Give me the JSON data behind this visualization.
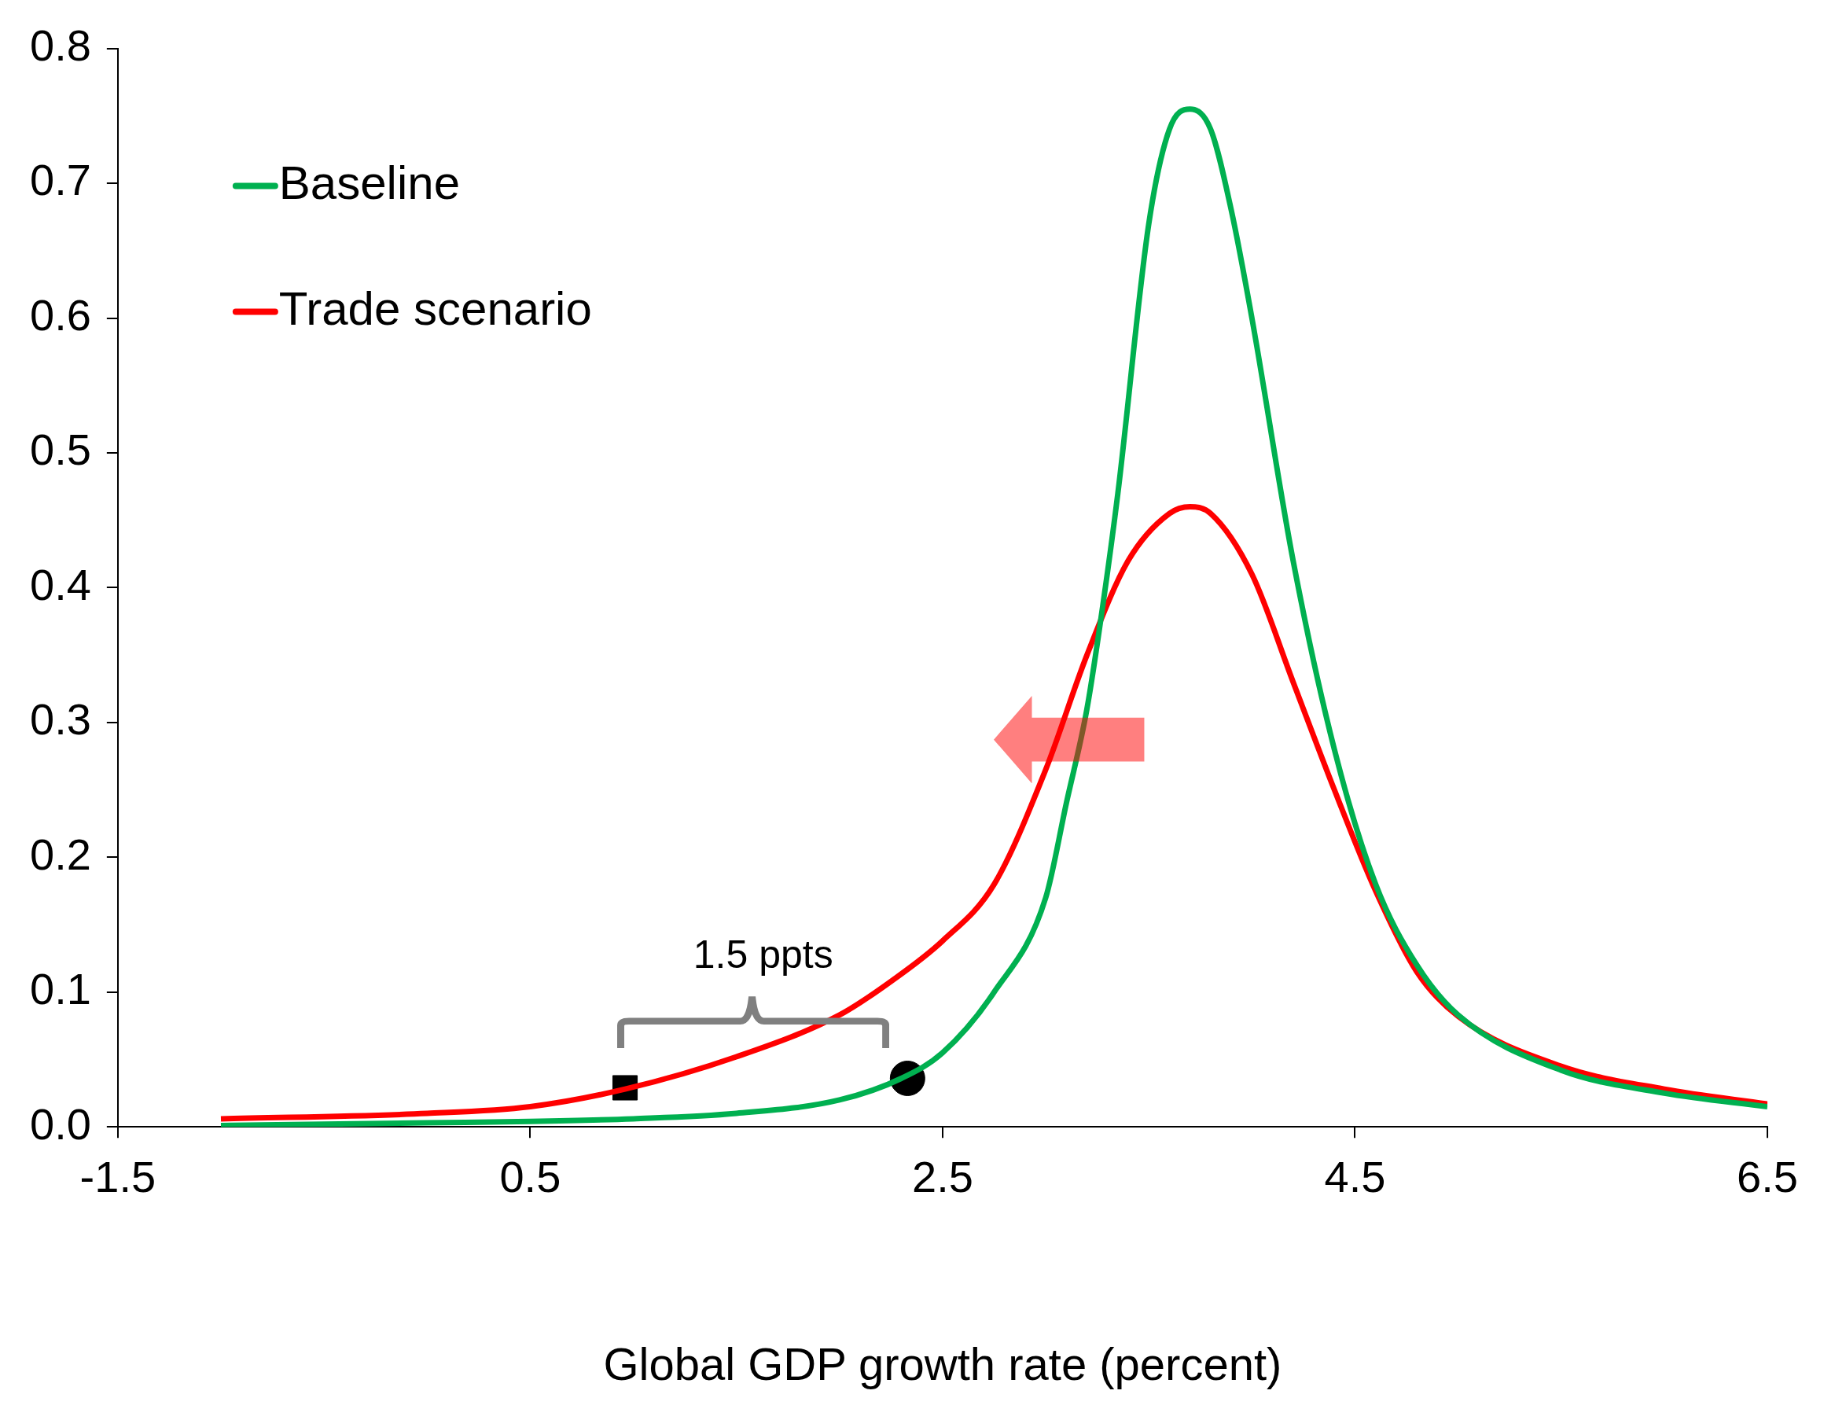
{
  "chart_data": {
    "type": "line",
    "xlabel": "Global GDP growth rate (percent)",
    "xlim": [
      -1.5,
      6.5
    ],
    "xticks": [
      -1.5,
      0.5,
      2.5,
      4.5,
      6.5
    ],
    "ylim": [
      0,
      0.8
    ],
    "yticks": [
      {
        "value": 0,
        "label": "0.0"
      },
      0.1,
      0.2,
      0.3,
      0.4,
      0.5,
      0.6,
      0.7,
      0.8
    ],
    "grid": false,
    "legend": "top left",
    "marker": "none",
    "line_style": "solid",
    "annotations": [
      "1.5 ppts"
    ],
    "series": [
      {
        "name": "Baseline",
        "color": "#00b050",
        "x": [
          -1.0,
          0.0,
          0.5,
          1.0,
          1.5,
          2.0,
          2.3,
          2.5,
          2.75,
          3.0,
          3.1,
          3.2,
          3.28,
          3.35,
          3.5,
          3.6,
          3.7,
          3.8,
          3.9,
          4.0,
          4.2,
          4.4,
          4.6,
          4.8,
          5.0,
          5.5,
          6.0,
          6.5
        ],
        "values": [
          0.001,
          0.003,
          0.004,
          0.006,
          0.01,
          0.02,
          0.036,
          0.055,
          0.1,
          0.17,
          0.24,
          0.31,
          0.39,
          0.47,
          0.67,
          0.74,
          0.755,
          0.74,
          0.68,
          0.6,
          0.42,
          0.28,
          0.18,
          0.12,
          0.083,
          0.042,
          0.025,
          0.015
        ]
      },
      {
        "name": "Trade scenario",
        "color": "#ff0000",
        "x": [
          -1.0,
          0.0,
          0.5,
          0.96,
          1.5,
          2.0,
          2.25,
          2.5,
          2.75,
          3.0,
          3.2,
          3.4,
          3.6,
          3.7,
          3.8,
          4.0,
          4.2,
          4.4,
          4.6,
          4.8,
          5.0,
          5.5,
          6.0,
          6.5
        ],
        "values": [
          0.006,
          0.01,
          0.015,
          0.028,
          0.052,
          0.083,
          0.108,
          0.138,
          0.18,
          0.265,
          0.35,
          0.42,
          0.455,
          0.46,
          0.455,
          0.41,
          0.33,
          0.25,
          0.175,
          0.115,
          0.082,
          0.045,
          0.028,
          0.017
        ]
      },
      {
        "type": "scatter",
        "marker": "square",
        "color": "#000000",
        "x": [
          0.96
        ],
        "values": [
          0.029
        ]
      },
      {
        "type": "scatter",
        "marker": "circle",
        "color": "#000000",
        "x": [
          2.33
        ],
        "values": [
          0.036
        ]
      }
    ]
  }
}
